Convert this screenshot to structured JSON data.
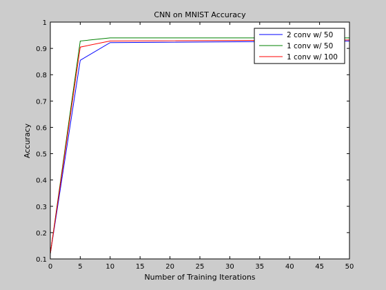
{
  "chart_data": {
    "type": "line",
    "title": "CNN on MNIST Accuracy",
    "xlabel": "Number of Training Iterations",
    "ylabel": "Accuracy",
    "xlim": [
      0,
      50
    ],
    "ylim": [
      0.1,
      1
    ],
    "xticks": [
      0,
      5,
      10,
      15,
      20,
      25,
      30,
      35,
      40,
      45,
      50
    ],
    "yticks": [
      0.1,
      0.2,
      0.3,
      0.4,
      0.5,
      0.6,
      0.7,
      0.8,
      0.9,
      1
    ],
    "ytick_labels": [
      "0.1",
      "0.2",
      "0.3",
      "0.4",
      "0.5",
      "0.6",
      "0.7",
      "0.8",
      "0.9",
      "1"
    ],
    "grid": false,
    "legend_position": "top-right",
    "x": [
      0,
      5,
      10,
      50
    ],
    "series": [
      {
        "name": "2 conv w/ 50",
        "color": "#0000ff",
        "values": [
          0.12,
          0.855,
          0.922,
          0.928
        ]
      },
      {
        "name": "1 conv w/ 50",
        "color": "#008000",
        "values": [
          0.12,
          0.928,
          0.94,
          0.94
        ]
      },
      {
        "name": "1 conv w/ 100",
        "color": "#ff0000",
        "values": [
          0.12,
          0.905,
          0.928,
          0.932
        ]
      }
    ]
  }
}
